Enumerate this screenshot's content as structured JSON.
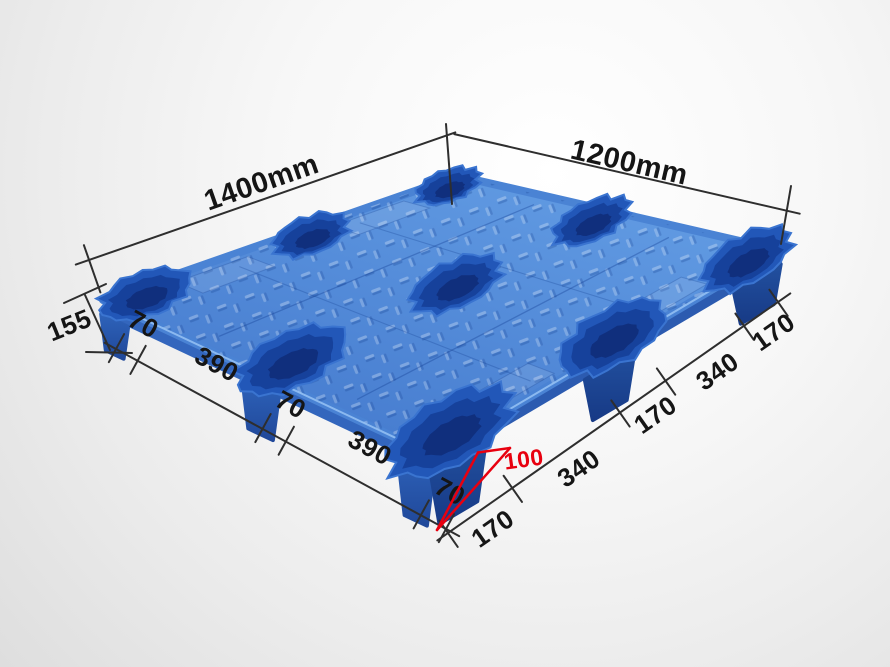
{
  "product": {
    "name": "blue plastic nestable pallet with nine feet",
    "surface": "diamond tread deck with nine scalloped foot recesses"
  },
  "dim_labels": {
    "length": "1400mm",
    "width": "1200mm",
    "height": "155",
    "foot_height": "100"
  },
  "edge_segments": {
    "front_left": [
      "70",
      "390",
      "70",
      "390",
      "70"
    ],
    "front_right": [
      "170",
      "340",
      "170",
      "340",
      "170"
    ]
  },
  "colors": {
    "deck_top": "#4e88d8",
    "deck_top_light": "#639de4",
    "deck_side_left": "#3366bd",
    "deck_side_right": "#2c5bb0",
    "foot_left_face": "#2e63ba",
    "foot_right_face": "#22509f",
    "recess_rim": "#3a74d0",
    "recess_mid": "#2257b8",
    "recess_dark": "#16419b",
    "recess_deep": "#102f7d",
    "dim_line": "#2e2e2e",
    "dim_text": "#151515",
    "accent_red": "#e8000f",
    "background_edge": "#dedede"
  }
}
